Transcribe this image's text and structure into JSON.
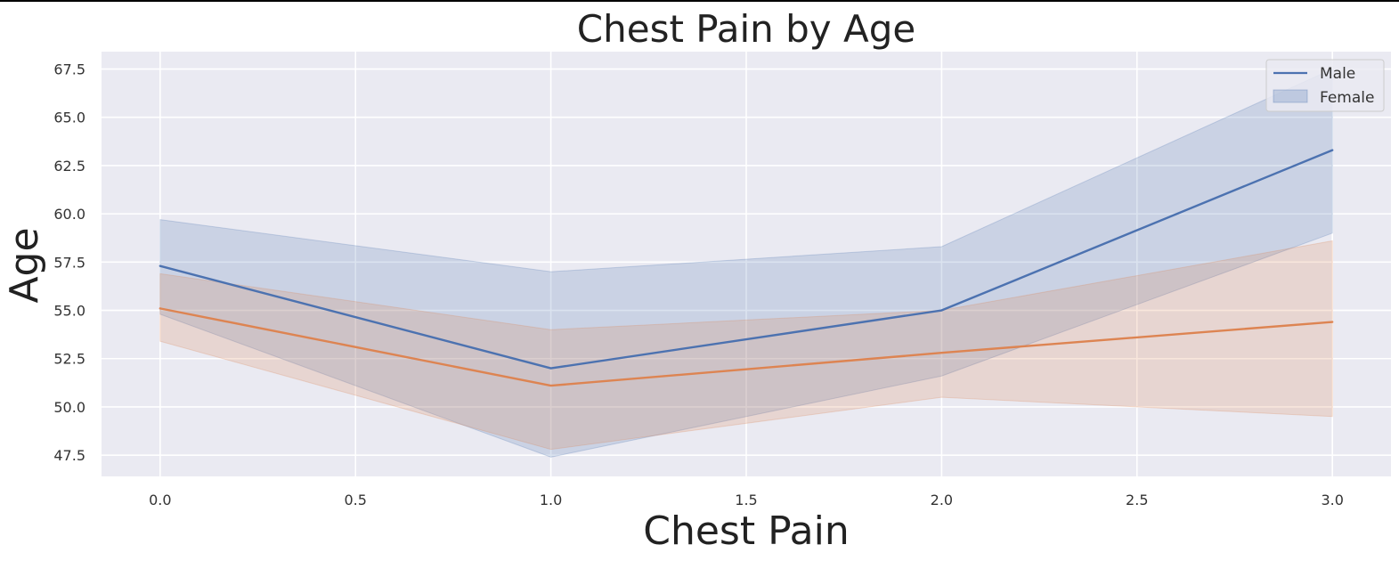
{
  "chart_data": {
    "type": "line",
    "title": "Chest Pain by Age",
    "xlabel": "Chest Pain",
    "ylabel": "Age",
    "xlim": [
      -0.15,
      3.15
    ],
    "ylim": [
      46.4,
      68.4
    ],
    "grid": true,
    "legend_position": "top-right",
    "x_ticks": [
      {
        "value": 0.0,
        "label": "0.0"
      },
      {
        "value": 0.5,
        "label": "0.5"
      },
      {
        "value": 1.0,
        "label": "1.0"
      },
      {
        "value": 1.5,
        "label": "1.5"
      },
      {
        "value": 2.0,
        "label": "2.0"
      },
      {
        "value": 2.5,
        "label": "2.5"
      },
      {
        "value": 3.0,
        "label": "3.0"
      }
    ],
    "y_ticks": [
      {
        "value": 47.5,
        "label": "47.5"
      },
      {
        "value": 50.0,
        "label": "50.0"
      },
      {
        "value": 52.5,
        "label": "52.5"
      },
      {
        "value": 55.0,
        "label": "55.0"
      },
      {
        "value": 57.5,
        "label": "57.5"
      },
      {
        "value": 60.0,
        "label": "60.0"
      },
      {
        "value": 62.5,
        "label": "62.5"
      },
      {
        "value": 65.0,
        "label": "65.0"
      },
      {
        "value": 67.5,
        "label": "67.5"
      }
    ],
    "x": [
      0,
      1,
      2,
      3
    ],
    "series": [
      {
        "key": "blue",
        "name": "Male",
        "color": "#4c72b0",
        "band_color": "#4c72b0",
        "values": [
          57.3,
          52.0,
          55.0,
          63.3
        ],
        "ci_low": [
          54.8,
          47.4,
          51.6,
          59.0
        ],
        "ci_high": [
          59.7,
          57.0,
          58.3,
          67.5
        ]
      },
      {
        "key": "orange",
        "color": "#dd8452",
        "band_color": "#dd8452",
        "values": [
          55.1,
          51.1,
          52.8,
          54.4
        ],
        "ci_low": [
          53.4,
          47.8,
          50.5,
          49.5
        ],
        "ci_high": [
          56.9,
          54.0,
          55.0,
          58.6
        ]
      }
    ],
    "legend": [
      {
        "label": "Male",
        "marker": "line",
        "color": "#4c72b0"
      },
      {
        "label": "Female",
        "marker": "patch",
        "color": "#4c72b0"
      }
    ],
    "colors": {
      "plot_background": "#eaeaf2",
      "grid": "#ffffff",
      "figure_background": "#ffffff"
    }
  }
}
